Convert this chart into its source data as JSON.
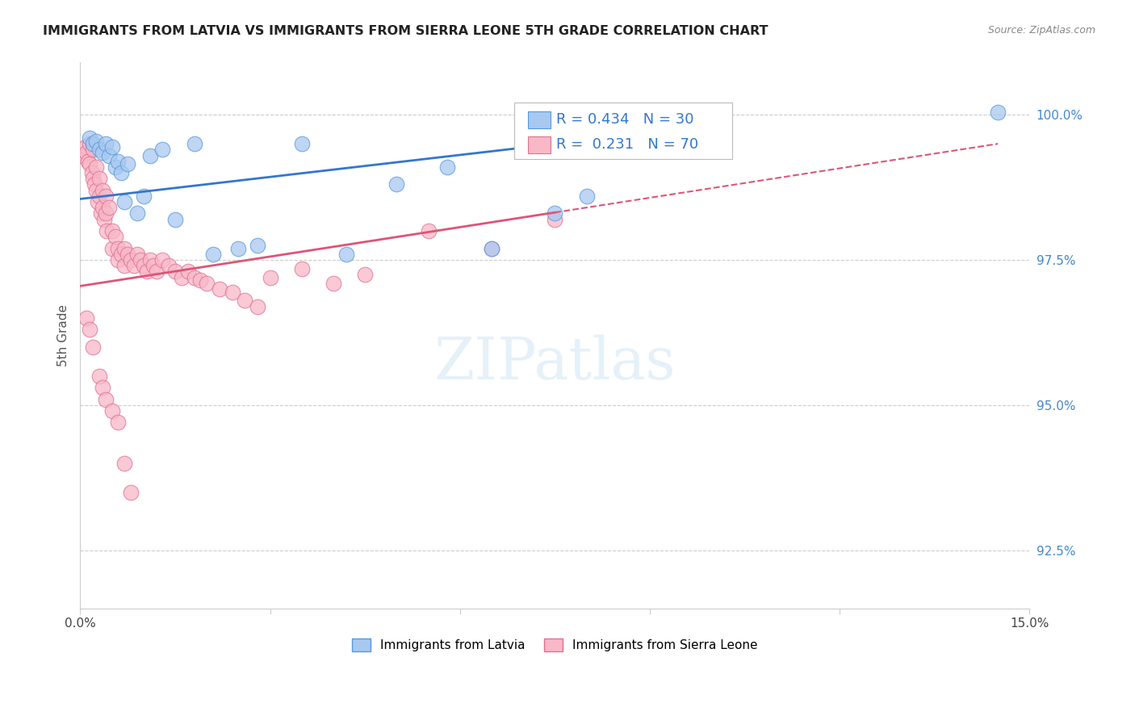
{
  "title": "IMMIGRANTS FROM LATVIA VS IMMIGRANTS FROM SIERRA LEONE 5TH GRADE CORRELATION CHART",
  "source": "Source: ZipAtlas.com",
  "ylabel": "5th Grade",
  "ytick_labels": [
    "92.5%",
    "95.0%",
    "97.5%",
    "100.0%"
  ],
  "ytick_values": [
    92.5,
    95.0,
    97.5,
    100.0
  ],
  "xmin": 0.0,
  "xmax": 15.0,
  "ymin": 91.5,
  "ymax": 100.9,
  "legend_blue_label": "Immigrants from Latvia",
  "legend_pink_label": "Immigrants from Sierra Leone",
  "R_blue": 0.434,
  "N_blue": 30,
  "R_pink": 0.231,
  "N_pink": 70,
  "blue_color": "#a8c8f0",
  "blue_edge_color": "#5599dd",
  "blue_line_color": "#3377cc",
  "pink_color": "#f8b8c8",
  "pink_edge_color": "#e07090",
  "pink_line_color": "#dd5577",
  "blue_line_x0": 0.0,
  "blue_line_y0": 98.55,
  "blue_line_x1": 9.5,
  "blue_line_y1": 99.75,
  "pink_line_x0": 0.0,
  "pink_line_y0": 97.05,
  "pink_line_x1": 14.5,
  "pink_line_y1": 99.5,
  "pink_solid_end": 7.5,
  "blue_scatter_x": [
    0.15,
    0.2,
    0.25,
    0.3,
    0.35,
    0.4,
    0.45,
    0.5,
    0.55,
    0.6,
    0.65,
    0.7,
    0.75,
    0.9,
    1.0,
    1.1,
    1.3,
    1.5,
    1.8,
    2.1,
    2.5,
    2.8,
    3.5,
    4.2,
    5.0,
    5.8,
    6.5,
    7.5,
    8.0,
    14.5
  ],
  "blue_scatter_y": [
    99.6,
    99.5,
    99.55,
    99.4,
    99.35,
    99.5,
    99.3,
    99.45,
    99.1,
    99.2,
    99.0,
    98.5,
    99.15,
    98.3,
    98.6,
    99.3,
    99.4,
    98.2,
    99.5,
    97.6,
    97.7,
    97.75,
    99.5,
    97.6,
    98.8,
    99.1,
    97.7,
    98.3,
    98.6,
    100.05
  ],
  "pink_scatter_x": [
    0.05,
    0.08,
    0.1,
    0.12,
    0.15,
    0.15,
    0.18,
    0.2,
    0.2,
    0.22,
    0.25,
    0.25,
    0.28,
    0.3,
    0.3,
    0.32,
    0.35,
    0.35,
    0.38,
    0.4,
    0.4,
    0.42,
    0.45,
    0.5,
    0.5,
    0.55,
    0.6,
    0.6,
    0.65,
    0.7,
    0.7,
    0.75,
    0.8,
    0.85,
    0.9,
    0.95,
    1.0,
    1.05,
    1.1,
    1.15,
    1.2,
    1.3,
    1.4,
    1.5,
    1.6,
    1.7,
    1.8,
    1.9,
    2.0,
    2.2,
    2.4,
    2.6,
    2.8,
    3.0,
    3.5,
    4.0,
    4.5,
    5.5,
    6.5,
    7.5,
    0.1,
    0.15,
    0.2,
    0.3,
    0.35,
    0.4,
    0.5,
    0.6,
    0.7,
    0.8
  ],
  "pink_scatter_y": [
    99.3,
    99.45,
    99.35,
    99.2,
    99.5,
    99.15,
    99.0,
    99.4,
    98.9,
    98.8,
    99.1,
    98.7,
    98.5,
    98.9,
    98.6,
    98.3,
    98.7,
    98.4,
    98.2,
    98.6,
    98.3,
    98.0,
    98.4,
    98.0,
    97.7,
    97.9,
    97.7,
    97.5,
    97.6,
    97.7,
    97.4,
    97.6,
    97.5,
    97.4,
    97.6,
    97.5,
    97.4,
    97.3,
    97.5,
    97.4,
    97.3,
    97.5,
    97.4,
    97.3,
    97.2,
    97.3,
    97.2,
    97.15,
    97.1,
    97.0,
    96.95,
    96.8,
    96.7,
    97.2,
    97.35,
    97.1,
    97.25,
    98.0,
    97.7,
    98.2,
    96.5,
    96.3,
    96.0,
    95.5,
    95.3,
    95.1,
    94.9,
    94.7,
    94.0,
    93.5
  ]
}
